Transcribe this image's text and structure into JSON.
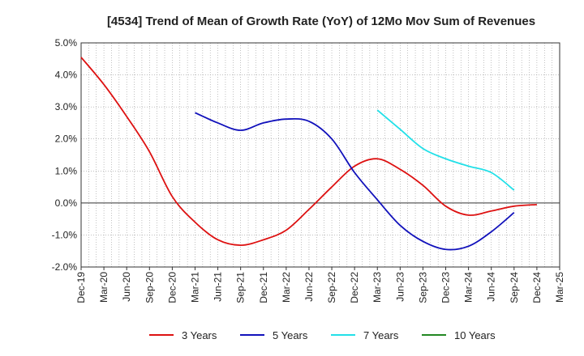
{
  "chart_data": {
    "type": "line",
    "title": "[4534]  Trend of Mean of Growth Rate (YoY) of 12Mo Mov Sum of Revenues",
    "xlabel": "",
    "ylabel": "",
    "ylim": [
      -2.0,
      5.0
    ],
    "y_ticks": [
      "5.0%",
      "4.0%",
      "3.0%",
      "2.0%",
      "1.0%",
      "0.0%",
      "-1.0%",
      "-2.0%"
    ],
    "y_tick_values": [
      5,
      4,
      3,
      2,
      1,
      0,
      -1,
      -2
    ],
    "x_tick_labels": [
      "Dec-19",
      "Mar-20",
      "Jun-20",
      "Sep-20",
      "Dec-20",
      "Mar-21",
      "Jun-21",
      "Sep-21",
      "Dec-21",
      "Mar-22",
      "Jun-22",
      "Sep-22",
      "Dec-22",
      "Mar-23",
      "Jun-23",
      "Sep-23",
      "Dec-23",
      "Mar-24",
      "Jun-24",
      "Sep-24",
      "Dec-24",
      "Mar-25"
    ],
    "grid": true,
    "legend_position": "bottom",
    "series": [
      {
        "name": "3 Years",
        "color": "#dd1111",
        "start_index": 0,
        "values": [
          4.55,
          3.7,
          2.7,
          1.6,
          0.2,
          -0.6,
          -1.15,
          -1.32,
          -1.15,
          -0.85,
          -0.2,
          0.5,
          1.15,
          1.38,
          1.05,
          0.55,
          -0.1,
          -0.38,
          -0.25,
          -0.1,
          -0.05
        ]
      },
      {
        "name": "5 Years",
        "color": "#1111bb",
        "start_index": 5,
        "values": [
          2.82,
          2.5,
          2.27,
          2.5,
          2.62,
          2.55,
          2.0,
          0.95,
          0.1,
          -0.7,
          -1.2,
          -1.45,
          -1.35,
          -0.9,
          -0.3
        ]
      },
      {
        "name": "7 Years",
        "color": "#22e0e8",
        "start_index": 13,
        "values": [
          2.9,
          2.3,
          1.7,
          1.38,
          1.15,
          0.95,
          0.4
        ]
      },
      {
        "name": "10 Years",
        "color": "#228822",
        "start_index": 0,
        "values": []
      }
    ]
  }
}
